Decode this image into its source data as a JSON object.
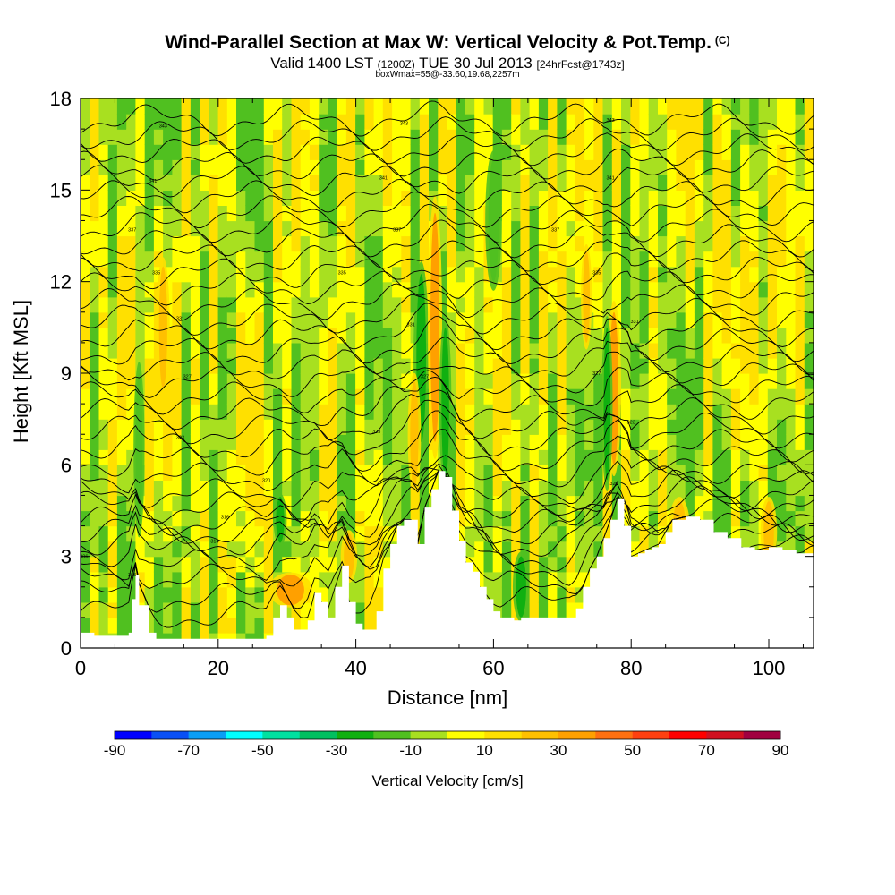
{
  "header": {
    "title": "Wind-Parallel Section at Max W: Vertical Velocity & Pot.Temp.",
    "copyright_mark": "(C)",
    "valid_prefix": "Valid 1400 LST",
    "valid_utc": "(1200Z)",
    "valid_date": "TUE 30 Jul 2013",
    "forecast_info": "[24hrFcst@1743z]",
    "box_note": "boxWmax=55@-33.60,19.68,2257m"
  },
  "colors": {
    "terrain": "#ffffff",
    "contour_line": "#000000",
    "frame": "#000000"
  },
  "chart_data": {
    "type": "heatmap",
    "title": "Wind-Parallel Section at Max W: Vertical Velocity & Pot.Temp.",
    "xlabel": "Distance [nm]",
    "ylabel": "Height [Kft MSL]",
    "xlim": [
      0,
      106.5
    ],
    "ylim": [
      0,
      18
    ],
    "x_ticks": [
      0,
      20,
      40,
      60,
      80,
      100
    ],
    "y_ticks": [
      0,
      3,
      6,
      9,
      12,
      15,
      18
    ],
    "colorbar": {
      "label": "Vertical Velocity [cm/s]",
      "levels": [
        -90,
        -80,
        -70,
        -60,
        -50,
        -40,
        -30,
        -20,
        -10,
        0,
        10,
        20,
        30,
        40,
        50,
        60,
        70,
        80,
        90
      ],
      "tick_labels": [
        -90,
        -70,
        -50,
        -30,
        -10,
        10,
        30,
        50,
        70,
        90
      ],
      "colors": [
        "#0000ff",
        "#0a50f5",
        "#0a9ef5",
        "#00ffff",
        "#00e0a0",
        "#00c060",
        "#10b010",
        "#50c020",
        "#a8e020",
        "#ffff00",
        "#ffe000",
        "#ffc000",
        "#ffa000",
        "#ff7010",
        "#ff4010",
        "#ff0000",
        "#d01020",
        "#a00040"
      ]
    },
    "terrain_profile": {
      "x": [
        0,
        2,
        5,
        7,
        7.5,
        8,
        8.5,
        10,
        11,
        12,
        14,
        17,
        20,
        22,
        24,
        27,
        28,
        29,
        30,
        31,
        32,
        33,
        34,
        35,
        36,
        37,
        38,
        39,
        40,
        41,
        42,
        43,
        44,
        45,
        46,
        47,
        48,
        49,
        50,
        51,
        52,
        53,
        54,
        55,
        56,
        57,
        58,
        59,
        60,
        61,
        62,
        63,
        64,
        65,
        66,
        67,
        68,
        69,
        70,
        71,
        72,
        73,
        74,
        75,
        76,
        77,
        78,
        79,
        80,
        81,
        82,
        83,
        84,
        85,
        86,
        88,
        90,
        92,
        94,
        96,
        98,
        100,
        102,
        104,
        106.5
      ],
      "height": [
        0.5,
        0.4,
        0.4,
        0.5,
        1.6,
        2.4,
        1.4,
        0.5,
        0.3,
        0.3,
        0.3,
        0.3,
        0.3,
        0.3,
        0.3,
        0.4,
        1.0,
        1.4,
        1.0,
        0.6,
        0.6,
        0.9,
        1.8,
        1.5,
        1.0,
        2.0,
        2.7,
        1.5,
        0.8,
        0.6,
        0.6,
        1.2,
        2.6,
        3.4,
        4.0,
        4.2,
        4.2,
        3.4,
        4.6,
        5.2,
        5.8,
        5.6,
        4.5,
        3.5,
        2.8,
        2.5,
        2.0,
        1.6,
        1.2,
        1.0,
        1.0,
        0.9,
        1.0,
        1.0,
        1.0,
        1.0,
        1.0,
        1.0,
        1.0,
        1.0,
        1.3,
        2.0,
        2.6,
        3.0,
        3.6,
        4.2,
        4.9,
        4.0,
        3.0,
        3.1,
        3.2,
        3.3,
        3.4,
        3.8,
        4.2,
        4.3,
        4.2,
        3.8,
        3.6,
        3.3,
        3.2,
        3.3,
        3.2,
        3.1,
        3.2
      ]
    },
    "pot_temp_contours": {
      "base_levels_kft": [
        1.8,
        2.3,
        2.8,
        3.2,
        3.6,
        3.9,
        4.2,
        4.5,
        4.9,
        5.3,
        5.8,
        6.3,
        6.8,
        7.3,
        7.8,
        8.3,
        8.8,
        9.3,
        9.8,
        10.3,
        10.8,
        11.3,
        11.8,
        12.3,
        12.8,
        13.3,
        13.8,
        14.3,
        14.8,
        15.3,
        15.8,
        16.3,
        16.8,
        17.3
      ],
      "labels": [
        {
          "x": 0.5,
          "y": 3.0,
          "text": "306"
        },
        {
          "x": 7.5,
          "y": 2.4,
          "text": "305"
        },
        {
          "x": 7.5,
          "y": 13.7,
          "text": "337"
        },
        {
          "x": 10.5,
          "y": 15.3,
          "text": "341"
        },
        {
          "x": 12,
          "y": 17.1,
          "text": "343"
        },
        {
          "x": 11,
          "y": 12.3,
          "text": "335"
        },
        {
          "x": 14.5,
          "y": 10.8,
          "text": "331"
        },
        {
          "x": 15.5,
          "y": 8.9,
          "text": "327"
        },
        {
          "x": 14.5,
          "y": 6.9,
          "text": "323"
        },
        {
          "x": 19.5,
          "y": 3.5,
          "text": "314"
        },
        {
          "x": 21,
          "y": 4.3,
          "text": "316"
        },
        {
          "x": 27,
          "y": 5.5,
          "text": "320"
        },
        {
          "x": 38,
          "y": 12.3,
          "text": "335"
        },
        {
          "x": 43,
          "y": 7.1,
          "text": "323"
        },
        {
          "x": 44,
          "y": 15.4,
          "text": "341"
        },
        {
          "x": 46,
          "y": 13.7,
          "text": "337"
        },
        {
          "x": 47,
          "y": 17.2,
          "text": "343"
        },
        {
          "x": 48,
          "y": 10.6,
          "text": "331"
        },
        {
          "x": 50,
          "y": 8.9,
          "text": "327"
        },
        {
          "x": 69,
          "y": 13.7,
          "text": "337"
        },
        {
          "x": 75,
          "y": 12.3,
          "text": "335"
        },
        {
          "x": 75,
          "y": 9.0,
          "text": "327"
        },
        {
          "x": 77,
          "y": 17.3,
          "text": "343"
        },
        {
          "x": 77,
          "y": 15.4,
          "text": "341"
        },
        {
          "x": 77.5,
          "y": 5.4,
          "text": "320"
        },
        {
          "x": 80,
          "y": 7.4,
          "text": "323"
        },
        {
          "x": 80.5,
          "y": 10.7,
          "text": "331"
        }
      ]
    },
    "velocity_features": [
      {
        "x": 49.5,
        "y": 9.5,
        "width_nm": 1.4,
        "height_kft": 5.5,
        "value": -30
      },
      {
        "x": 51.5,
        "y": 10.5,
        "width_nm": 1.3,
        "height_kft": 7.5,
        "value": 30
      },
      {
        "x": 53,
        "y": 8.0,
        "width_nm": 1.1,
        "height_kft": 5.0,
        "value": -30
      },
      {
        "x": 48.5,
        "y": 7.0,
        "width_nm": 1.2,
        "height_kft": 3.5,
        "value": 25
      },
      {
        "x": 77.5,
        "y": 8.5,
        "width_nm": 1.3,
        "height_kft": 5.0,
        "value": 30
      },
      {
        "x": 76.5,
        "y": 8.0,
        "width_nm": 1.0,
        "height_kft": 5.0,
        "value": -30
      },
      {
        "x": 30.5,
        "y": 1.9,
        "width_nm": 4.0,
        "height_kft": 1.0,
        "value": 30
      },
      {
        "x": 39,
        "y": 3.0,
        "width_nm": 1.5,
        "height_kft": 1.5,
        "value": 25
      },
      {
        "x": 12,
        "y": 10.5,
        "width_nm": 1.2,
        "height_kft": 4.0,
        "value": 20
      },
      {
        "x": 8.5,
        "y": 6.5,
        "width_nm": 1.0,
        "height_kft": 5.0,
        "value": -20
      },
      {
        "x": 29,
        "y": 4.2,
        "width_nm": 1.2,
        "height_kft": 1.5,
        "value": -30
      },
      {
        "x": 64,
        "y": 2.0,
        "width_nm": 1.5,
        "height_kft": 2.0,
        "value": -25
      },
      {
        "x": 87,
        "y": 3.8,
        "width_nm": 2.0,
        "height_kft": 2.0,
        "value": 25
      },
      {
        "x": 100,
        "y": 3.8,
        "width_nm": 1.5,
        "height_kft": 2.0,
        "value": 25
      },
      {
        "x": 73.5,
        "y": 11.5,
        "width_nm": 1.0,
        "height_kft": 3.0,
        "value": 20
      },
      {
        "x": 60,
        "y": 14.0,
        "width_nm": 1.5,
        "height_kft": 4.0,
        "value": -20
      }
    ]
  }
}
